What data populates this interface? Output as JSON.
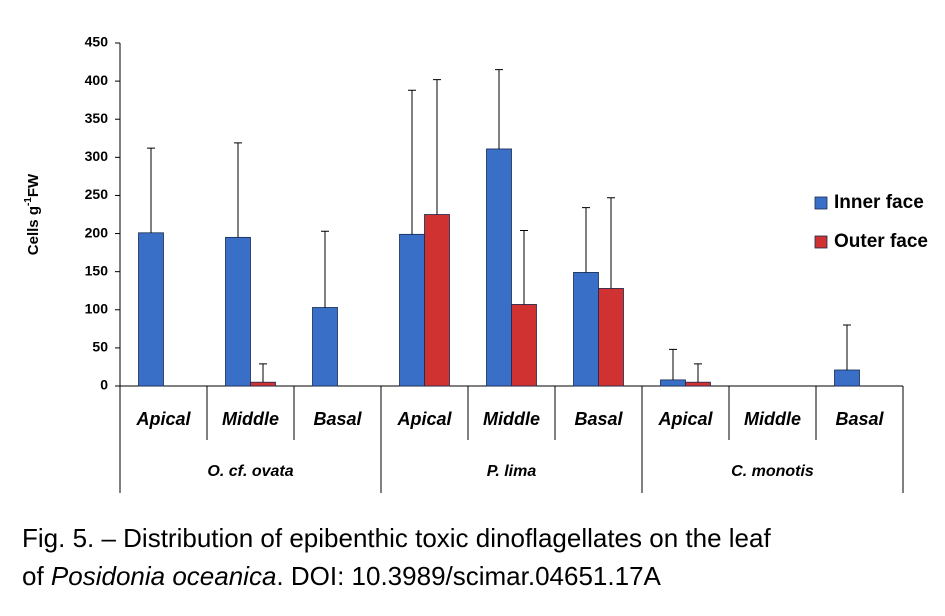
{
  "chart_data": {
    "type": "bar",
    "ylabel_parts": [
      "Cells g",
      "-1",
      "FW"
    ],
    "categories": [
      "Apical",
      "Middle",
      "Basal",
      "Apical",
      "Middle",
      "Basal",
      "Apical",
      "Middle",
      "Basal"
    ],
    "groups": [
      "O. cf. ovata",
      "P. lima",
      "C. monotis"
    ],
    "series": [
      {
        "name": "Inner face",
        "color": "#3a6fc8",
        "values": [
          201,
          195,
          103,
          199,
          311,
          149,
          8,
          null,
          21
        ],
        "errors": [
          111,
          124,
          100,
          189,
          104,
          85,
          40,
          null,
          59
        ]
      },
      {
        "name": "Outer face",
        "color": "#d03232",
        "values": [
          null,
          5,
          null,
          225,
          107,
          128,
          5,
          null,
          null
        ],
        "errors": [
          null,
          24,
          null,
          177,
          97,
          119,
          24,
          null,
          null
        ]
      }
    ],
    "ylim": [
      0,
      450
    ],
    "yticks": [
      0,
      50,
      100,
      150,
      200,
      250,
      300,
      350,
      400,
      450
    ]
  },
  "caption": [
    [
      {
        "text": "Fig. 5. – Distribution of epibenthic toxic dinoflagellates on the leaf",
        "italic": false
      }
    ],
    [
      {
        "text": "of ",
        "italic": false
      },
      {
        "text": "Posidonia oceanica",
        "italic": true
      },
      {
        "text": ". DOI: 10.3989/scimar.04651.17A",
        "italic": false
      }
    ]
  ]
}
